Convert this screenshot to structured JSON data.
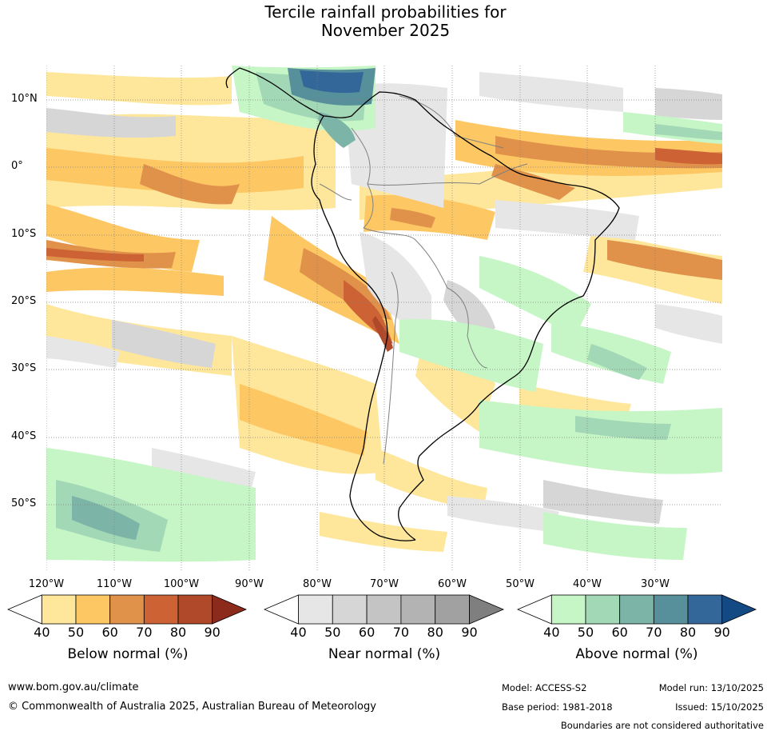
{
  "title_line1": "Tercile rainfall probabilities for",
  "title_line2": "November 2025",
  "lat_labels": [
    "10°N",
    "0°",
    "10°S",
    "20°S",
    "30°S",
    "40°S",
    "50°S"
  ],
  "lon_labels": [
    "120°W",
    "110°W",
    "100°W",
    "90°W",
    "80°W",
    "70°W",
    "60°W",
    "50°W",
    "40°W",
    "30°W"
  ],
  "colorbars": [
    {
      "name": "below",
      "title": "Below normal (%)",
      "ticks": [
        "40",
        "50",
        "60",
        "70",
        "80",
        "90"
      ],
      "colors": [
        "#ffffff",
        "#fee79b",
        "#fdc763",
        "#e0914a",
        "#cd6234",
        "#b0482a",
        "#8c2a1c"
      ]
    },
    {
      "name": "near",
      "title": "Near normal (%)",
      "ticks": [
        "40",
        "50",
        "60",
        "70",
        "80",
        "90"
      ],
      "colors": [
        "#ffffff",
        "#e6e6e6",
        "#d6d6d6",
        "#c4c4c4",
        "#b3b3b3",
        "#a1a1a1",
        "#7f7f7f"
      ]
    },
    {
      "name": "above",
      "title": "Above normal (%)",
      "ticks": [
        "40",
        "50",
        "60",
        "70",
        "80",
        "90"
      ],
      "colors": [
        "#ffffff",
        "#c6f5c6",
        "#a2d8b6",
        "#7cb5a8",
        "#57909b",
        "#33679a",
        "#144a84"
      ]
    }
  ],
  "footer": {
    "website": "www.bom.gov.au/climate",
    "copyright": "© Commonwealth of Australia 2025, Australian Bureau of Meteorology",
    "model": "Model: ACCESS-S2",
    "base_period": "Base period: 1981-2018",
    "model_run": "Model run: 13/10/2025",
    "issued": "Issued: 15/10/2025",
    "disclaimer": "Boundaries are not considered authoritative"
  }
}
